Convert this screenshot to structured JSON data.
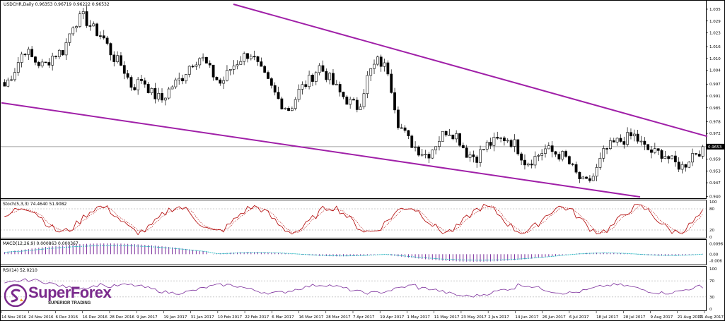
{
  "chart_data": {
    "type": "candlestick",
    "symbol_header": "USDCHR,Daily  0.96353 0.96719 0.96222 0.96532",
    "last_price_label": "0.9653",
    "x_dates": [
      "14 Nov 2016",
      "24 Nov 2016",
      "6 Dec 2016",
      "16 Dec 2016",
      "28 Dec 2016",
      "9 Jan 2017",
      "19 Jan 2017",
      "31 Jan 2017",
      "10 Feb 2017",
      "22 Feb 2017",
      "6 Mar 2017",
      "16 Mar 2017",
      "28 Mar 2017",
      "7 Apr 2017",
      "19 Apr 2017",
      "1 May 2017",
      "11 May 2017",
      "23 May 2017",
      "2 Jun 2017",
      "14 Jun 2017",
      "26 Jun 2017",
      "6 Jul 2017",
      "18 Jul 2017",
      "28 Jul 2017",
      "9 Aug 2017",
      "21 Aug 2017",
      "31 Aug 2017"
    ],
    "price_axis": {
      "ticks": [
        "1.035",
        "1.029",
        "1.023",
        "1.016",
        "1.010",
        "1.004",
        "0.997",
        "0.991",
        "0.985",
        "0.978",
        "0.972",
        "0.966",
        "0.959",
        "0.953",
        "0.947",
        "0.940"
      ],
      "ylim": [
        0.9395,
        1.0375
      ]
    },
    "close_anchors": [
      0.996,
      1.004,
      1.015,
      1.009,
      1.006,
      1.012,
      1.014,
      1.028,
      1.031,
      1.025,
      1.021,
      1.011,
      1.006,
      0.995,
      1.0,
      0.992,
      0.989,
      0.996,
      1.0,
      1.008,
      1.011,
      1.003,
      0.997,
      1.005,
      1.01,
      1.013,
      1.004,
      0.996,
      0.988,
      0.984,
      0.994,
      0.999,
      1.006,
      1.0,
      0.993,
      0.988,
      0.985,
      1.002,
      1.009,
      1.004,
      0.978,
      0.969,
      0.964,
      0.961,
      0.968,
      0.974,
      0.971,
      0.962,
      0.96,
      0.966,
      0.968,
      0.97,
      0.966,
      0.957,
      0.96,
      0.964,
      0.962,
      0.96,
      0.952,
      0.946,
      0.951,
      0.963,
      0.967,
      0.969,
      0.971,
      0.965,
      0.962,
      0.962,
      0.957,
      0.955,
      0.962,
      0.964
    ],
    "trendlines": [
      {
        "from": [
          "24 Jan 2017",
          1.0375
        ],
        "to": [
          "31 Aug 2017",
          0.9705
        ],
        "color": "#a020a8"
      },
      {
        "from": [
          "14 Nov 2016",
          0.9875
        ],
        "to": [
          "28 Jul 2017",
          0.9398
        ],
        "color": "#a020a8"
      }
    ],
    "stochastic": {
      "header": "Stoch(5,3,3) 74.4640 51.9082",
      "ylim": [
        0,
        100
      ],
      "ticks": [
        "100",
        "80",
        "20",
        "0"
      ],
      "main_color": "#b00000",
      "signal_color": "#b00000"
    },
    "macd": {
      "header": "MACD(12,26,9) 0.000863 0.000367",
      "ticks": [
        "0.0096",
        "0.00",
        "-0.006"
      ],
      "ylim": [
        -0.009,
        0.012
      ],
      "hist_color": "#7b2d9b",
      "signal_color": "#1fb8c0"
    },
    "rsi": {
      "header": "RSI(14) 52.0210",
      "ticks": [
        "100",
        "70",
        "30",
        "0"
      ],
      "ylim": [
        0,
        100
      ],
      "line_color": "#7b2d9b"
    }
  },
  "branding": {
    "name": "SuperForex",
    "tagline": "SUPERIOR TRADING",
    "primary_color": "#7a2a8c"
  }
}
